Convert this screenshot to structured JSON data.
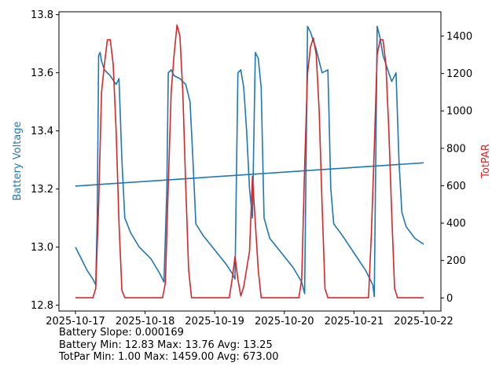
{
  "chart_data": {
    "type": "line",
    "x_ticks": [
      "2025-10-17",
      "2025-10-18",
      "2025-10-19",
      "2025-10-20",
      "2025-10-21",
      "2025-10-22"
    ],
    "xlim": [
      "2025-10-17",
      "2025-10-22"
    ],
    "left_axis": {
      "label": "Battery Voltage",
      "color": "#1f77b4",
      "ylim": [
        12.78,
        13.81
      ],
      "ticks": [
        "12.8",
        "13.0",
        "13.2",
        "13.4",
        "13.6",
        "13.8"
      ]
    },
    "right_axis": {
      "label": "TotPAR",
      "color": "#d62728",
      "ylim": [
        -70,
        1530
      ],
      "ticks": [
        "0",
        "200",
        "400",
        "600",
        "800",
        "1000",
        "1200",
        "1400"
      ]
    },
    "series": [
      {
        "axis": "left",
        "color": "#1f77b4",
        "points": [
          [
            "2025-10-17 00:00",
            13.0
          ],
          [
            "2025-10-17 02:00",
            12.96
          ],
          [
            "2025-10-17 04:00",
            12.92
          ],
          [
            "2025-10-17 06:00",
            12.89
          ],
          [
            "2025-10-17 07:00",
            12.87
          ],
          [
            "2025-10-17 07:30",
            13.1
          ],
          [
            "2025-10-17 08:00",
            13.66
          ],
          [
            "2025-10-17 08:30",
            13.67
          ],
          [
            "2025-10-17 09:00",
            13.64
          ],
          [
            "2025-10-17 10:00",
            13.61
          ],
          [
            "2025-10-17 12:00",
            13.59
          ],
          [
            "2025-10-17 14:00",
            13.56
          ],
          [
            "2025-10-17 15:00",
            13.58
          ],
          [
            "2025-10-17 16:00",
            13.3
          ],
          [
            "2025-10-17 17:00",
            13.1
          ],
          [
            "2025-10-17 19:00",
            13.05
          ],
          [
            "2025-10-17 22:00",
            13.0
          ],
          [
            "2025-10-18 02:00",
            12.96
          ],
          [
            "2025-10-18 05:00",
            12.91
          ],
          [
            "2025-10-18 06:30",
            12.88
          ],
          [
            "2025-10-18 07:30",
            13.2
          ],
          [
            "2025-10-18 08:00",
            13.6
          ],
          [
            "2025-10-18 09:00",
            13.61
          ],
          [
            "2025-10-18 10:00",
            13.59
          ],
          [
            "2025-10-18 12:00",
            13.58
          ],
          [
            "2025-10-18 14:00",
            13.56
          ],
          [
            "2025-10-18 15:30",
            13.5
          ],
          [
            "2025-10-18 16:30",
            13.3
          ],
          [
            "2025-10-18 17:30",
            13.08
          ],
          [
            "2025-10-18 20:00",
            13.04
          ],
          [
            "2025-10-19 00:00",
            12.99
          ],
          [
            "2025-10-19 04:00",
            12.94
          ],
          [
            "2025-10-19 06:00",
            12.91
          ],
          [
            "2025-10-19 07:00",
            12.89
          ],
          [
            "2025-10-19 08:00",
            13.6
          ],
          [
            "2025-10-19 09:00",
            13.61
          ],
          [
            "2025-10-19 10:00",
            13.55
          ],
          [
            "2025-10-19 11:00",
            13.4
          ],
          [
            "2025-10-19 12:00",
            13.2
          ],
          [
            "2025-10-19 13:00",
            13.1
          ],
          [
            "2025-10-19 14:00",
            13.67
          ],
          [
            "2025-10-19 15:00",
            13.65
          ],
          [
            "2025-10-19 16:00",
            13.55
          ],
          [
            "2025-10-19 17:00",
            13.1
          ],
          [
            "2025-10-19 19:00",
            13.03
          ],
          [
            "2025-10-19 23:00",
            12.98
          ],
          [
            "2025-10-20 03:00",
            12.93
          ],
          [
            "2025-10-20 06:00",
            12.88
          ],
          [
            "2025-10-20 07:00",
            12.84
          ],
          [
            "2025-10-20 07:30",
            13.3
          ],
          [
            "2025-10-20 08:00",
            13.76
          ],
          [
            "2025-10-20 09:00",
            13.74
          ],
          [
            "2025-10-20 11:00",
            13.68
          ],
          [
            "2025-10-20 13:00",
            13.6
          ],
          [
            "2025-10-20 15:00",
            13.61
          ],
          [
            "2025-10-20 16:00",
            13.2
          ],
          [
            "2025-10-20 17:00",
            13.08
          ],
          [
            "2025-10-20 20:00",
            13.04
          ],
          [
            "2025-10-21 00:00",
            12.98
          ],
          [
            "2025-10-21 04:00",
            12.92
          ],
          [
            "2025-10-21 06:30",
            12.87
          ],
          [
            "2025-10-21 07:00",
            12.83
          ],
          [
            "2025-10-21 07:30",
            13.3
          ],
          [
            "2025-10-21 08:00",
            13.76
          ],
          [
            "2025-10-21 09:00",
            13.72
          ],
          [
            "2025-10-21 10:00",
            13.66
          ],
          [
            "2025-10-21 12:00",
            13.6
          ],
          [
            "2025-10-21 13:00",
            13.57
          ],
          [
            "2025-10-21 14:30",
            13.6
          ],
          [
            "2025-10-21 15:30",
            13.3
          ],
          [
            "2025-10-21 16:30",
            13.12
          ],
          [
            "2025-10-21 18:00",
            13.07
          ],
          [
            "2025-10-21 21:00",
            13.03
          ],
          [
            "2025-10-22 00:00",
            13.01
          ]
        ]
      },
      {
        "axis": "left",
        "color": "#1f77b4",
        "points": [
          [
            "2025-10-17 00:00",
            13.21
          ],
          [
            "2025-10-22 00:00",
            13.29
          ]
        ]
      },
      {
        "axis": "right",
        "color": "#d62728",
        "points": [
          [
            "2025-10-17 00:00",
            1
          ],
          [
            "2025-10-17 06:00",
            1
          ],
          [
            "2025-10-17 07:00",
            50
          ],
          [
            "2025-10-17 08:00",
            500
          ],
          [
            "2025-10-17 09:00",
            1100
          ],
          [
            "2025-10-17 10:00",
            1250
          ],
          [
            "2025-10-17 11:00",
            1380
          ],
          [
            "2025-10-17 12:00",
            1380
          ],
          [
            "2025-10-17 13:00",
            1250
          ],
          [
            "2025-10-17 14:00",
            900
          ],
          [
            "2025-10-17 15:00",
            400
          ],
          [
            "2025-10-17 16:00",
            40
          ],
          [
            "2025-10-17 17:00",
            1
          ],
          [
            "2025-10-18 06:00",
            1
          ],
          [
            "2025-10-18 07:00",
            80
          ],
          [
            "2025-10-18 08:00",
            600
          ],
          [
            "2025-10-18 09:00",
            1100
          ],
          [
            "2025-10-18 10:00",
            1300
          ],
          [
            "2025-10-18 11:00",
            1459
          ],
          [
            "2025-10-18 12:00",
            1400
          ],
          [
            "2025-10-18 13:00",
            1100
          ],
          [
            "2025-10-18 14:00",
            600
          ],
          [
            "2025-10-18 15:00",
            150
          ],
          [
            "2025-10-18 16:00",
            1
          ],
          [
            "2025-10-19 05:00",
            1
          ],
          [
            "2025-10-19 06:00",
            100
          ],
          [
            "2025-10-19 07:00",
            220
          ],
          [
            "2025-10-19 08:00",
            100
          ],
          [
            "2025-10-19 09:00",
            10
          ],
          [
            "2025-10-19 10:00",
            60
          ],
          [
            "2025-10-19 12:00",
            250
          ],
          [
            "2025-10-19 13:00",
            650
          ],
          [
            "2025-10-19 14:00",
            400
          ],
          [
            "2025-10-19 15:00",
            150
          ],
          [
            "2025-10-19 16:00",
            1
          ],
          [
            "2025-10-20 05:00",
            1
          ],
          [
            "2025-10-20 06:00",
            100
          ],
          [
            "2025-10-20 07:00",
            700
          ],
          [
            "2025-10-20 08:00",
            1200
          ],
          [
            "2025-10-20 09:00",
            1340
          ],
          [
            "2025-10-20 10:00",
            1390
          ],
          [
            "2025-10-20 11:00",
            1300
          ],
          [
            "2025-10-20 12:00",
            1000
          ],
          [
            "2025-10-20 13:00",
            500
          ],
          [
            "2025-10-20 14:00",
            50
          ],
          [
            "2025-10-20 15:00",
            1
          ],
          [
            "2025-10-21 05:00",
            1
          ],
          [
            "2025-10-21 06:00",
            350
          ],
          [
            "2025-10-21 07:00",
            800
          ],
          [
            "2025-10-21 08:00",
            1300
          ],
          [
            "2025-10-21 09:00",
            1380
          ],
          [
            "2025-10-21 10:00",
            1380
          ],
          [
            "2025-10-21 11:00",
            1250
          ],
          [
            "2025-10-21 12:00",
            900
          ],
          [
            "2025-10-21 13:00",
            450
          ],
          [
            "2025-10-21 14:00",
            50
          ],
          [
            "2025-10-21 15:00",
            1
          ],
          [
            "2025-10-22 00:00",
            1
          ]
        ]
      }
    ]
  },
  "stats": {
    "line1": "Battery Slope: 0.000169",
    "line2": "Battery Min: 12.83 Max: 13.76 Avg: 13.25",
    "line3": "TotPar Min: 1.00 Max: 1459.00 Avg: 673.00"
  }
}
